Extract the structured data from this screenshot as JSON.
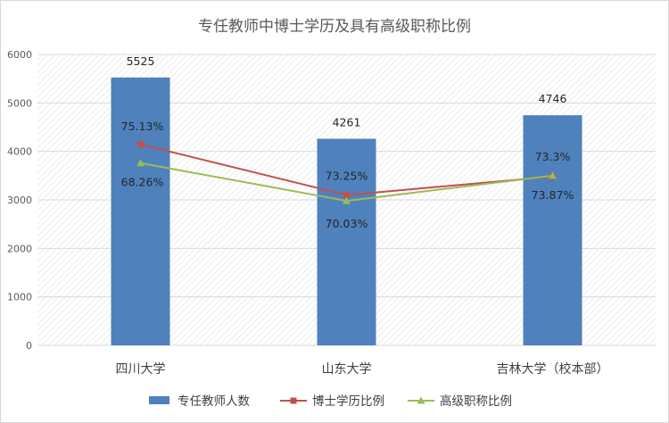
{
  "chart_data": {
    "type": "bar",
    "title": "专任教师中博士学历及具有高级职称比例",
    "categories": [
      "四川大学",
      "山东大学",
      "吉林大学（校本部）"
    ],
    "ylim": [
      0,
      6000
    ],
    "yticks": [
      "0",
      "1000",
      "2000",
      "3000",
      "4000",
      "5000",
      "6000"
    ],
    "grid": true,
    "legend_position": "bottom",
    "series": [
      {
        "name": "专任教师人数",
        "kind": "bar",
        "color": "#4f81bd",
        "values": [
          5525,
          4261,
          4746
        ],
        "labels": [
          "5525",
          "4261",
          "4746"
        ]
      },
      {
        "name": "博士学历比例",
        "kind": "line",
        "marker": "square",
        "color": "#c0504d",
        "values": [
          4145,
          3100,
          3480
        ],
        "labels": [
          "75.13%",
          "73.25%",
          "73.3%"
        ]
      },
      {
        "name": "高级职称比例",
        "kind": "line",
        "marker": "triangle",
        "color": "#9bbb59",
        "values": [
          3760,
          2980,
          3500
        ],
        "labels": [
          "68.26%",
          "70.03%",
          "73.87%"
        ]
      }
    ]
  }
}
